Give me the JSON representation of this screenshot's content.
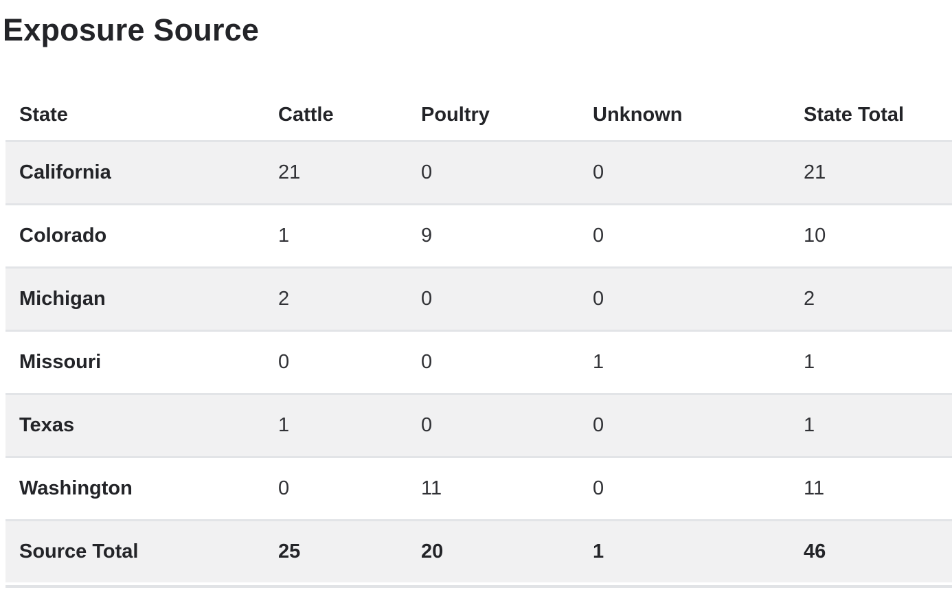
{
  "title": "Exposure Source",
  "table": {
    "columns": [
      "State",
      "Cattle",
      "Poultry",
      "Unknown",
      "State Total"
    ],
    "rows": [
      {
        "state": "California",
        "cattle": "21",
        "poultry": "0",
        "unknown": "0",
        "state_total": "21",
        "is_total": false
      },
      {
        "state": "Colorado",
        "cattle": "1",
        "poultry": "9",
        "unknown": "0",
        "state_total": "10",
        "is_total": false
      },
      {
        "state": "Michigan",
        "cattle": "2",
        "poultry": "0",
        "unknown": "0",
        "state_total": "2",
        "is_total": false
      },
      {
        "state": "Missouri",
        "cattle": "0",
        "poultry": "0",
        "unknown": "1",
        "state_total": "1",
        "is_total": false
      },
      {
        "state": "Texas",
        "cattle": "1",
        "poultry": "0",
        "unknown": "0",
        "state_total": "1",
        "is_total": false
      },
      {
        "state": "Washington",
        "cattle": "0",
        "poultry": "11",
        "unknown": "0",
        "state_total": "11",
        "is_total": false
      },
      {
        "state": "Source Total",
        "cattle": "25",
        "poultry": "20",
        "unknown": "1",
        "state_total": "46",
        "is_total": true
      }
    ]
  },
  "colors": {
    "background": "#ffffff",
    "row_stripe": "#f1f1f2",
    "row_border": "#e2e4e7",
    "heading_text": "#232428",
    "value_text": "#313236"
  },
  "chart_data": {
    "type": "table",
    "title": "Exposure Source",
    "columns": [
      "State",
      "Cattle",
      "Poultry",
      "Unknown",
      "State Total"
    ],
    "rows": [
      [
        "California",
        21,
        0,
        0,
        21
      ],
      [
        "Colorado",
        1,
        9,
        0,
        10
      ],
      [
        "Michigan",
        2,
        0,
        0,
        2
      ],
      [
        "Missouri",
        0,
        0,
        1,
        1
      ],
      [
        "Texas",
        1,
        0,
        0,
        1
      ],
      [
        "Washington",
        0,
        11,
        0,
        11
      ],
      [
        "Source Total",
        25,
        20,
        1,
        46
      ]
    ],
    "layout_hints": {
      "striped_rows": true,
      "stripe_on": "odd-data-rows-and-total",
      "totals_row_bold": true,
      "state_column_bold": true
    }
  }
}
